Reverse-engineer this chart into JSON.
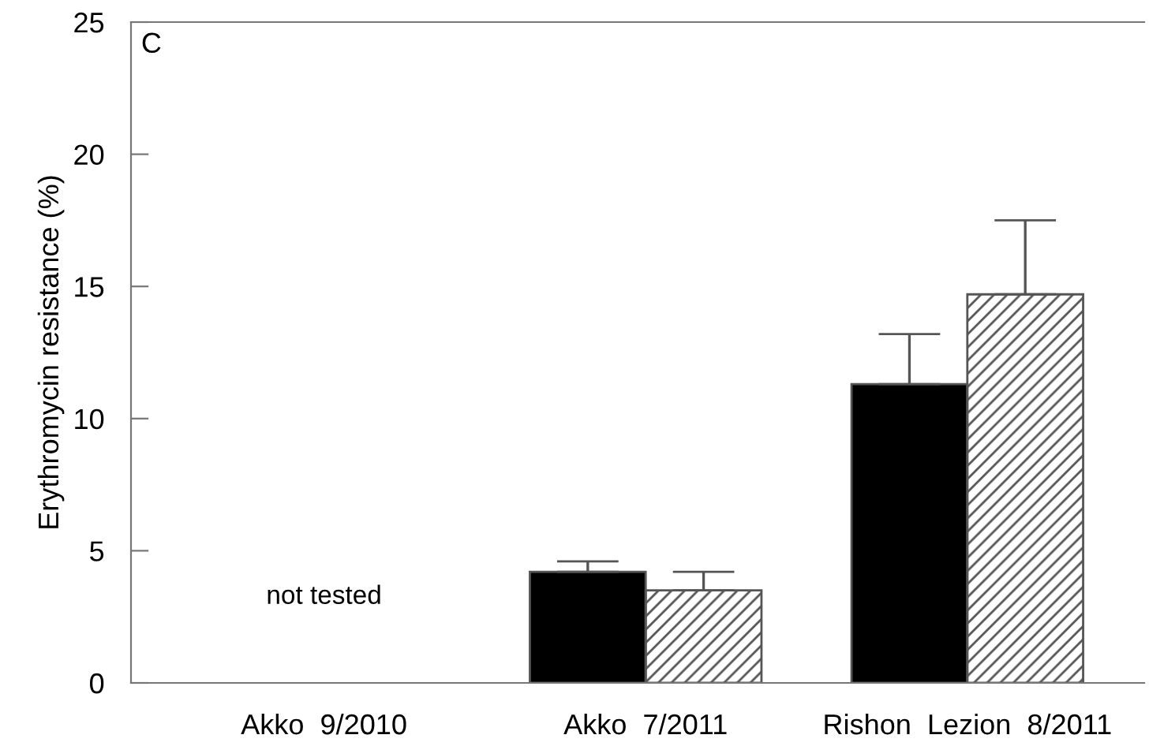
{
  "chart_data": {
    "type": "bar",
    "ylabel": "Erythromycin resistance (%)",
    "categories": [
      "Akko  9/2010",
      "Akko  7/2011",
      "Rishon  Lezion  8/2011"
    ],
    "series": [
      {
        "color": "#000000",
        "values": [
          null,
          4.2,
          11.3
        ],
        "errors": [
          null,
          0.4,
          1.9
        ]
      },
      {
        "color": "#555555",
        "values": [
          null,
          3.5,
          14.7
        ],
        "errors": [
          null,
          0.7,
          2.8
        ]
      }
    ],
    "ylim": [
      0,
      25
    ],
    "yticks": [
      0,
      5,
      10,
      15,
      20,
      25
    ],
    "grid": false,
    "legend": false,
    "annotations": [
      "C",
      "not tested"
    ]
  }
}
